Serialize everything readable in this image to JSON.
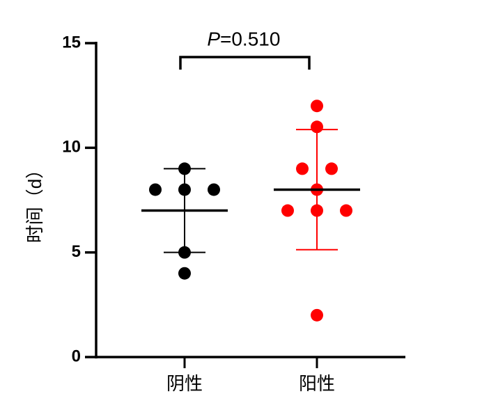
{
  "chart_data": {
    "type": "scatter",
    "y_label": "时间（d）",
    "annotation": {
      "symbol": "P",
      "text": "=0.510"
    },
    "categories": [
      "阴性",
      "阳性"
    ],
    "series": [
      {
        "color": "#000000",
        "values": [
          9,
          8,
          8,
          8,
          5,
          4
        ],
        "mean": 7,
        "sd": 2
      },
      {
        "color": "#ff0000",
        "values": [
          12,
          11,
          9,
          9,
          8,
          7,
          7,
          7,
          2
        ],
        "mean": 8,
        "sd": 2.87
      }
    ],
    "ylim": [
      0,
      15
    ],
    "yticks": [
      0,
      5,
      10,
      15
    ]
  }
}
